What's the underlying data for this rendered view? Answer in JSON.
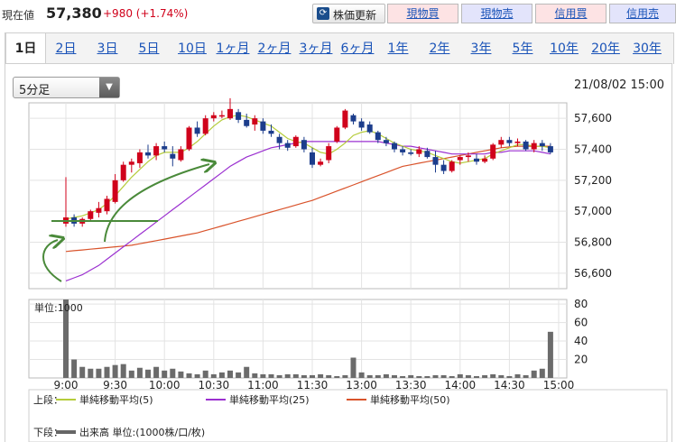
{
  "header": {
    "price_label": "現在値",
    "price": "57,380",
    "change": "+980 (+1.74%)",
    "refresh_label": "株価更新",
    "trade_buttons": [
      {
        "label": "現物買",
        "bg": "#fde3e4"
      },
      {
        "label": "現物売",
        "bg": "#e3e4fb"
      },
      {
        "label": "信用買",
        "bg": "#fde3e4"
      },
      {
        "label": "信用売",
        "bg": "#e3e4fb"
      }
    ]
  },
  "tabs": [
    "1日",
    "2日",
    "3日",
    "5日",
    "10日",
    "1ヶ月",
    "2ヶ月",
    "3ヶ月",
    "6ヶ月",
    "1年",
    "2年",
    "3年",
    "5年",
    "10年",
    "20年",
    "30年"
  ],
  "active_tab": "1日",
  "interval": {
    "selected": "5分足"
  },
  "datetime": "21/08/02 15:00",
  "legend": {
    "upper_label": "上段：",
    "lower_label": "下段：",
    "items": [
      {
        "name": "単純移動平均(5)",
        "color": "#b5cc3a"
      },
      {
        "name": "単純移動平均(25)",
        "color": "#9b30d0"
      },
      {
        "name": "単純移動平均(50)",
        "color": "#d9532b"
      }
    ],
    "volume_item": {
      "name": "出来高 単位:(1000株/口/枚)",
      "color": "#666666"
    }
  },
  "chart_data": [
    {
      "type": "candlestick",
      "x_ticks": [
        "9:00",
        "9:30",
        "10:00",
        "10:30",
        "11:00",
        "11:30",
        "13:00",
        "13:30",
        "14:00",
        "14:30",
        "15:00"
      ],
      "y_ticks": [
        56600,
        56800,
        57000,
        57200,
        57400,
        57600
      ],
      "ylim": [
        56500,
        57700
      ],
      "grid": true,
      "colors": {
        "up": "#d0021b",
        "down": "#1c3d8c"
      },
      "candles": [
        [
          56920,
          57220,
          56900,
          56960
        ],
        [
          56960,
          56980,
          56900,
          56920
        ],
        [
          56920,
          56960,
          56900,
          56950
        ],
        [
          56950,
          57010,
          56940,
          57000
        ],
        [
          56990,
          57060,
          56960,
          57020
        ],
        [
          57000,
          57100,
          56980,
          57080
        ],
        [
          57060,
          57240,
          57050,
          57200
        ],
        [
          57200,
          57320,
          57190,
          57300
        ],
        [
          57300,
          57340,
          57250,
          57320
        ],
        [
          57310,
          57400,
          57280,
          57380
        ],
        [
          57380,
          57430,
          57340,
          57360
        ],
        [
          57360,
          57440,
          57330,
          57420
        ],
        [
          57420,
          57450,
          57380,
          57400
        ],
        [
          57370,
          57420,
          57290,
          57340
        ],
        [
          57330,
          57420,
          57320,
          57400
        ],
        [
          57400,
          57550,
          57390,
          57540
        ],
        [
          57540,
          57580,
          57480,
          57500
        ],
        [
          57500,
          57620,
          57490,
          57600
        ],
        [
          57600,
          57640,
          57580,
          57620
        ],
        [
          57620,
          57650,
          57600,
          57620
        ],
        [
          57600,
          57730,
          57590,
          57660
        ],
        [
          57640,
          57660,
          57570,
          57590
        ],
        [
          57590,
          57630,
          57540,
          57550
        ],
        [
          57560,
          57620,
          57520,
          57600
        ],
        [
          57580,
          57600,
          57500,
          57520
        ],
        [
          57520,
          57560,
          57480,
          57500
        ],
        [
          57480,
          57500,
          57400,
          57440
        ],
        [
          57440,
          57460,
          57390,
          57410
        ],
        [
          57420,
          57490,
          57410,
          57480
        ],
        [
          57460,
          57480,
          57380,
          57400
        ],
        [
          57380,
          57410,
          57280,
          57300
        ],
        [
          57300,
          57340,
          57290,
          57320
        ],
        [
          57330,
          57440,
          57310,
          57420
        ],
        [
          57450,
          57550,
          57440,
          57540
        ],
        [
          57540,
          57660,
          57530,
          57650
        ],
        [
          57620,
          57630,
          57560,
          57580
        ],
        [
          57580,
          57600,
          57520,
          57540
        ],
        [
          57560,
          57580,
          57500,
          57510
        ],
        [
          57510,
          57520,
          57440,
          57460
        ],
        [
          57460,
          57480,
          57420,
          57440
        ],
        [
          57440,
          57450,
          57380,
          57400
        ],
        [
          57400,
          57420,
          57360,
          57380
        ],
        [
          57380,
          57400,
          57360,
          57370
        ],
        [
          57370,
          57420,
          57350,
          57400
        ],
        [
          57390,
          57410,
          57340,
          57350
        ],
        [
          57350,
          57390,
          57250,
          57300
        ],
        [
          57300,
          57330,
          57240,
          57260
        ],
        [
          57260,
          57330,
          57250,
          57320
        ],
        [
          57330,
          57360,
          57300,
          57350
        ],
        [
          57350,
          57380,
          57320,
          57360
        ],
        [
          57340,
          57370,
          57300,
          57320
        ],
        [
          57320,
          57360,
          57310,
          57340
        ],
        [
          57340,
          57440,
          57330,
          57430
        ],
        [
          57430,
          57480,
          57410,
          57460
        ],
        [
          57460,
          57480,
          57420,
          57440
        ],
        [
          57440,
          57470,
          57420,
          57450
        ],
        [
          57450,
          57460,
          57390,
          57400
        ],
        [
          57400,
          57460,
          57380,
          57440
        ],
        [
          57440,
          57460,
          57390,
          57420
        ],
        [
          57420,
          57440,
          57370,
          57380
        ]
      ],
      "sma": {
        "5": [
          56950,
          56960,
          56970,
          56990,
          57010,
          57050,
          57100,
          57160,
          57220,
          57270,
          57320,
          57360,
          57380,
          57380,
          57380,
          57410,
          57450,
          57500,
          57550,
          57590,
          57610,
          57620,
          57610,
          57590,
          57570,
          57550,
          57510,
          57470,
          57450,
          57440,
          57410,
          57380,
          57370,
          57400,
          57440,
          57490,
          57510,
          57520,
          57500,
          57470,
          57440,
          57420,
          57400,
          57390,
          57380,
          57360,
          57340,
          57320,
          57310,
          57320,
          57330,
          57340,
          57370,
          57390,
          57410,
          57430,
          57430,
          57420,
          57420,
          57410
        ],
        "25": [
          56550,
          56570,
          56590,
          56620,
          56650,
          56690,
          56730,
          56770,
          56810,
          56850,
          56890,
          56930,
          56970,
          57010,
          57050,
          57090,
          57130,
          57170,
          57210,
          57250,
          57290,
          57320,
          57350,
          57370,
          57390,
          57410,
          57420,
          57430,
          57440,
          57450,
          57450,
          57450,
          57450,
          57450,
          57450,
          57450,
          57450,
          57450,
          57450,
          57440,
          57430,
          57420,
          57420,
          57410,
          57400,
          57390,
          57380,
          57370,
          57370,
          57370,
          57370,
          57370,
          57380,
          57380,
          57390,
          57390,
          57390,
          57390,
          57380,
          57370
        ],
        "50": [
          56740,
          56745,
          56750,
          56755,
          56760,
          56765,
          56770,
          56775,
          56780,
          56790,
          56800,
          56810,
          56820,
          56830,
          56840,
          56850,
          56860,
          56875,
          56890,
          56905,
          56920,
          56935,
          56950,
          56965,
          56980,
          56995,
          57010,
          57025,
          57040,
          57055,
          57070,
          57090,
          57110,
          57130,
          57150,
          57170,
          57190,
          57210,
          57230,
          57250,
          57270,
          57290,
          57300,
          57310,
          57320,
          57330,
          57340,
          57350,
          57360,
          57370,
          57380,
          57390,
          57400,
          57410,
          57415,
          57420,
          57420,
          57420,
          57420,
          57420
        ]
      }
    },
    {
      "type": "bar",
      "title": "単位:1000",
      "y_ticks": [
        20,
        40,
        60,
        80
      ],
      "ylim": [
        0,
        85
      ],
      "values": [
        85,
        20,
        12,
        10,
        10,
        12,
        14,
        15,
        8,
        11,
        9,
        12,
        8,
        10,
        7,
        5,
        4,
        8,
        4,
        6,
        8,
        6,
        12,
        5,
        4,
        4,
        3,
        4,
        4,
        3,
        3,
        4,
        3,
        2,
        3,
        22,
        6,
        3,
        3,
        4,
        3,
        2,
        3,
        2,
        2,
        3,
        3,
        2,
        4,
        3,
        2,
        3,
        4,
        3,
        2,
        4,
        3,
        8,
        10,
        50
      ]
    }
  ]
}
